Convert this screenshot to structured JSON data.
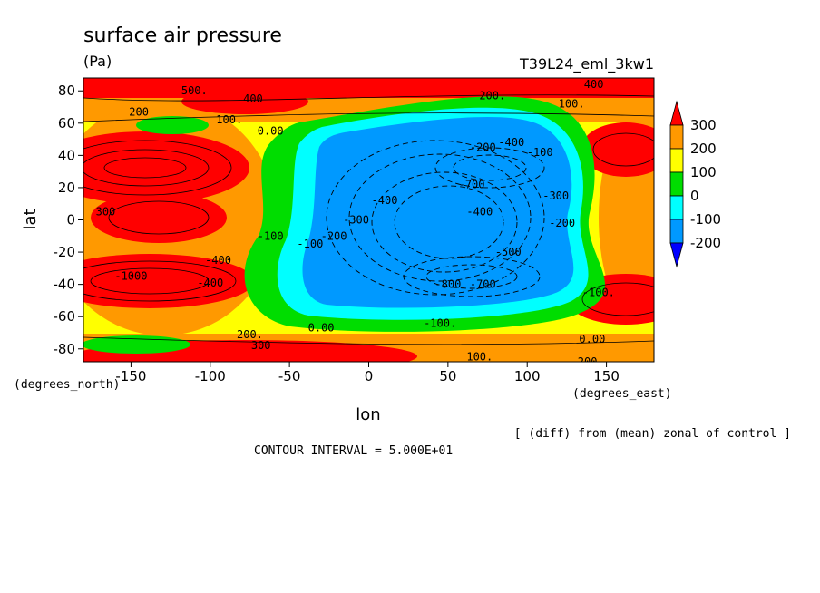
{
  "chart_data": {
    "type": "contour",
    "title": "surface air pressure",
    "units": "(Pa)",
    "run_label": "T39L24_eml_3kw1",
    "xlabel": "lon",
    "ylabel": "lat",
    "x_unit": "(degrees_east)",
    "y_unit": "(degrees_north)",
    "x_ticks": [
      "-150",
      "-100",
      "-50",
      "0",
      "50",
      "100",
      "150"
    ],
    "x_tick_values": [
      -150,
      -100,
      -50,
      0,
      50,
      100,
      150
    ],
    "y_ticks": [
      "80",
      "60",
      "40",
      "20",
      "0",
      "-20",
      "-40",
      "-60",
      "-80"
    ],
    "y_tick_values": [
      80,
      60,
      40,
      20,
      0,
      -20,
      -40,
      -60,
      -80
    ],
    "xlim": [
      -180,
      180
    ],
    "ylim": [
      -88,
      88
    ],
    "colorbar": {
      "labels": [
        "300",
        "200",
        "100",
        "0",
        "-100",
        "-200"
      ],
      "levels": [
        300,
        200,
        100,
        0,
        -100,
        -200
      ],
      "colors": [
        "#ff0000",
        "#ff9900",
        "#ffff00",
        "#00dd00",
        "#00ffff",
        "#0099ff",
        "#0000ff"
      ]
    },
    "contour_labels": [
      {
        "text": "500.",
        "lon": -110,
        "lat": 80
      },
      {
        "text": "400",
        "lon": -73,
        "lat": 75
      },
      {
        "text": "200",
        "lon": -145,
        "lat": 67
      },
      {
        "text": "100.",
        "lon": -88,
        "lat": 62
      },
      {
        "text": "0.00",
        "lon": -62,
        "lat": 55
      },
      {
        "text": "200.",
        "lon": 78,
        "lat": 77
      },
      {
        "text": "100.",
        "lon": 128,
        "lat": 72
      },
      {
        "text": "400",
        "lon": 142,
        "lat": 84
      },
      {
        "text": "-200",
        "lon": 72,
        "lat": 45
      },
      {
        "text": "-700",
        "lon": 65,
        "lat": 22
      },
      {
        "text": "-400",
        "lon": 10,
        "lat": 12
      },
      {
        "text": "-300",
        "lon": -8,
        "lat": 0
      },
      {
        "text": "-200",
        "lon": -22,
        "lat": -10
      },
      {
        "text": "-100",
        "lon": -37,
        "lat": -15
      },
      {
        "text": "-400",
        "lon": 70,
        "lat": 5
      },
      {
        "text": "-300",
        "lon": 118,
        "lat": 15
      },
      {
        "text": "-200",
        "lon": 122,
        "lat": -2
      },
      {
        "text": "-100",
        "lon": 108,
        "lat": 42
      },
      {
        "text": "-500",
        "lon": 88,
        "lat": -20
      },
      {
        "text": "-800",
        "lon": 50,
        "lat": -40
      },
      {
        "text": "-700",
        "lon": 72,
        "lat": -40
      },
      {
        "text": "-100.",
        "lon": 45,
        "lat": -64
      },
      {
        "text": "0.00",
        "lon": -30,
        "lat": -67
      },
      {
        "text": "200.",
        "lon": -75,
        "lat": -71
      },
      {
        "text": "300",
        "lon": -68,
        "lat": -78
      },
      {
        "text": "100.",
        "lon": 70,
        "lat": -85
      },
      {
        "text": "0.00",
        "lon": 141,
        "lat": -74
      },
      {
        "text": "-200.",
        "lon": 138,
        "lat": -88
      },
      {
        "text": "-100.",
        "lon": 145,
        "lat": -45
      },
      {
        "text": "300",
        "lon": -166,
        "lat": 5
      },
      {
        "text": "-400",
        "lon": -95,
        "lat": -25
      },
      {
        "text": "-400",
        "lon": -100,
        "lat": -39
      },
      {
        "text": "-1000",
        "lon": -150,
        "lat": -35
      },
      {
        "text": "-100",
        "lon": -62,
        "lat": -10
      },
      {
        "text": "-400",
        "lon": 90,
        "lat": 48
      }
    ]
  },
  "annotations": {
    "diff_note": "[ (diff) from (mean) zonal of control ]",
    "contour_interval": "CONTOUR INTERVAL = 5.000E+01"
  }
}
